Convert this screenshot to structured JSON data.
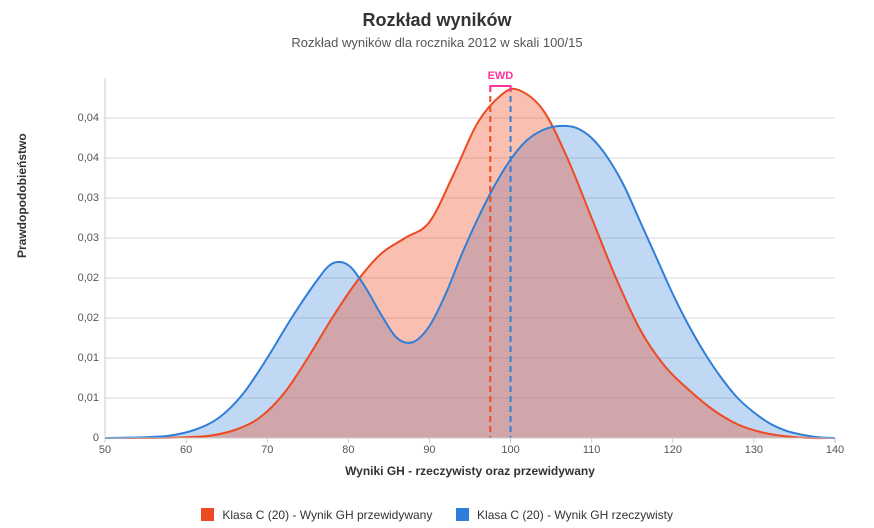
{
  "title": "Rozkład wyników",
  "subtitle": "Rozkład wyników dla rocznika 2012 w skali 100/15",
  "yaxis_label": "Prawdopodobieństwo",
  "xaxis_label": "Wyniki GH - rzeczywisty oraz przewidywany",
  "chart": {
    "type": "area",
    "xlim": [
      50,
      140
    ],
    "ylim": [
      0,
      0.045
    ],
    "xtick_step": 10,
    "ytick_labels": [
      "0",
      "0,01",
      "0,01",
      "0,02",
      "0,02",
      "0,03",
      "0,03",
      "0,04",
      "0,04"
    ],
    "ytick_values": [
      0,
      0.005,
      0.01,
      0.015,
      0.02,
      0.025,
      0.03,
      0.035,
      0.04
    ],
    "grid_color": "#d8d8d8",
    "axis_color": "#cccccc",
    "background": "#ffffff",
    "label_fontsize": 12,
    "tick_fontsize": 11,
    "series": [
      {
        "name": "Klasa C (20) - Wynik GH przewidywany",
        "stroke": "#ee4a22",
        "fill": "#ee4a22",
        "fill_opacity": 0.35,
        "stroke_width": 2,
        "points": [
          [
            50,
            0.0
          ],
          [
            55,
            0.0
          ],
          [
            60,
            0.0001
          ],
          [
            63,
            0.0003
          ],
          [
            66,
            0.001
          ],
          [
            69,
            0.0025
          ],
          [
            72,
            0.0055
          ],
          [
            75,
            0.01
          ],
          [
            78,
            0.015
          ],
          [
            81,
            0.0195
          ],
          [
            84,
            0.023
          ],
          [
            87,
            0.025
          ],
          [
            90,
            0.027
          ],
          [
            93,
            0.033
          ],
          [
            96,
            0.0395
          ],
          [
            99,
            0.043
          ],
          [
            101,
            0.0435
          ],
          [
            104,
            0.041
          ],
          [
            107,
            0.035
          ],
          [
            110,
            0.0275
          ],
          [
            113,
            0.02
          ],
          [
            116,
            0.0135
          ],
          [
            119,
            0.009
          ],
          [
            122,
            0.006
          ],
          [
            125,
            0.0035
          ],
          [
            128,
            0.0017
          ],
          [
            131,
            0.0007
          ],
          [
            134,
            0.0002
          ],
          [
            137,
            0.0
          ],
          [
            140,
            0.0
          ]
        ],
        "mean_line_x": 97.5,
        "mean_line_color": "#ee4a22"
      },
      {
        "name": "Klasa C (20) - Wynik GH rzeczywisty",
        "stroke": "#2f7ed8",
        "fill": "#2f7ed8",
        "fill_opacity": 0.3,
        "stroke_width": 2,
        "points": [
          [
            50,
            0.0
          ],
          [
            55,
            0.0001
          ],
          [
            58,
            0.0003
          ],
          [
            61,
            0.001
          ],
          [
            64,
            0.0025
          ],
          [
            67,
            0.0055
          ],
          [
            70,
            0.01
          ],
          [
            73,
            0.015
          ],
          [
            76,
            0.0195
          ],
          [
            78,
            0.0218
          ],
          [
            80,
            0.0216
          ],
          [
            82,
            0.019
          ],
          [
            84,
            0.0155
          ],
          [
            86,
            0.0125
          ],
          [
            88,
            0.012
          ],
          [
            90,
            0.014
          ],
          [
            92,
            0.018
          ],
          [
            94,
            0.023
          ],
          [
            96,
            0.0275
          ],
          [
            98,
            0.0315
          ],
          [
            100,
            0.0348
          ],
          [
            102,
            0.0372
          ],
          [
            104,
            0.0385
          ],
          [
            106,
            0.039
          ],
          [
            108,
            0.0388
          ],
          [
            110,
            0.0375
          ],
          [
            112,
            0.035
          ],
          [
            114,
            0.0315
          ],
          [
            116,
            0.027
          ],
          [
            118,
            0.0225
          ],
          [
            120,
            0.018
          ],
          [
            122,
            0.014
          ],
          [
            124,
            0.0105
          ],
          [
            126,
            0.0075
          ],
          [
            128,
            0.005
          ],
          [
            130,
            0.0032
          ],
          [
            132,
            0.0018
          ],
          [
            134,
            0.0009
          ],
          [
            136,
            0.0004
          ],
          [
            138,
            0.0001
          ],
          [
            140,
            0.0
          ]
        ],
        "mean_line_x": 100,
        "mean_line_color": "#2f7ed8"
      }
    ],
    "ewd": {
      "label": "EWD",
      "color": "#ff3399",
      "x_from": 97.5,
      "x_to": 100,
      "bracket_y": 0.044,
      "dash": "6 4"
    }
  },
  "legend_swatch_size": 13
}
